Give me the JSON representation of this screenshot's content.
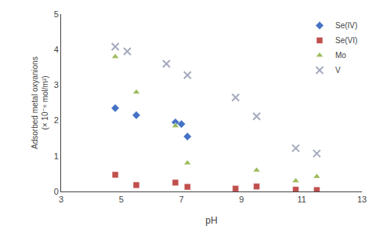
{
  "chart_data": {
    "type": "scatter",
    "xlabel": "pH",
    "ylabel": "Adsorbed metal oxyanions\n(× 10⁻⁶ mol/m²)",
    "series": [
      {
        "name": "Se(IV)",
        "color": "#4472C4",
        "marker": "diamond",
        "x": [
          4.8,
          5.5,
          6.8,
          7.0,
          7.2
        ],
        "values": [
          2.35,
          2.15,
          1.95,
          1.9,
          1.55
        ]
      },
      {
        "name": "Se(VI)",
        "color": "#C0504D",
        "marker": "square",
        "x": [
          4.8,
          5.5,
          6.8,
          7.2,
          8.8,
          9.5,
          10.8,
          11.5
        ],
        "values": [
          0.47,
          0.18,
          0.25,
          0.13,
          0.08,
          0.14,
          0.05,
          0.04
        ]
      },
      {
        "name": "Mo",
        "color": "#9BBB59",
        "marker": "triangle-up",
        "x": [
          4.8,
          5.5,
          6.8,
          7.2,
          9.5,
          10.8,
          11.5
        ],
        "values": [
          3.8,
          2.8,
          1.85,
          0.8,
          0.6,
          0.3,
          0.42
        ]
      },
      {
        "name": "V",
        "color": "#A5AABD",
        "marker": "x",
        "x": [
          4.8,
          5.2,
          6.5,
          7.2,
          8.8,
          9.5,
          10.8,
          11.5
        ],
        "values": [
          4.08,
          3.95,
          3.6,
          3.28,
          2.65,
          2.12,
          1.22,
          1.07
        ]
      }
    ],
    "xlim": [
      3,
      13
    ],
    "ylim": [
      0,
      5
    ],
    "xticks": [
      3,
      5,
      7,
      9,
      11,
      13
    ],
    "yticks": [
      0,
      1,
      2,
      3,
      4,
      5
    ],
    "grid": false,
    "legend": "upper right"
  }
}
